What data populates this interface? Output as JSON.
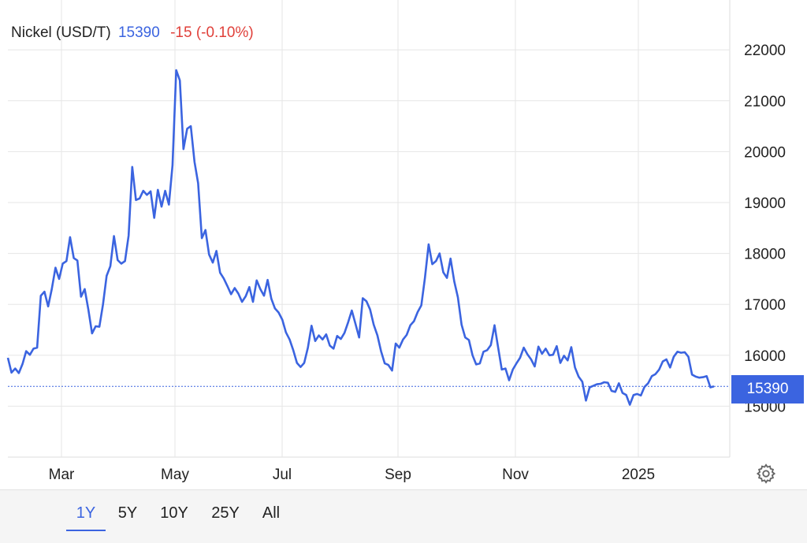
{
  "legend": {
    "name": "Nickel (USD/T)",
    "price": "15390",
    "change": "-15 (-0.10%)"
  },
  "price_tag": "15390",
  "range_buttons": [
    "1Y",
    "5Y",
    "10Y",
    "25Y",
    "All"
  ],
  "active_range": "1Y",
  "colors": {
    "line": "#3b64e0",
    "negative": "#e0403a",
    "grid": "#e6e6e6"
  },
  "icons": {
    "settings": "gear-icon"
  },
  "chart_data": {
    "type": "line",
    "title": "Nickel (USD/T)",
    "ylim": [
      14000,
      22000
    ],
    "yticks": [
      15000,
      16000,
      17000,
      18000,
      19000,
      20000,
      21000,
      22000
    ],
    "xticks": [
      "Mar",
      "May",
      "Jul",
      "Sep",
      "Nov",
      "2025"
    ],
    "last_value": 15390,
    "series": [
      {
        "values": [
          15950,
          15660,
          15740,
          15650,
          15830,
          16080,
          16010,
          16130,
          16150,
          17170,
          17250,
          16960,
          17300,
          17720,
          17500,
          17800,
          17850,
          18320,
          17910,
          17860,
          17150,
          17300,
          16900,
          16430,
          16570,
          16560,
          17000,
          17560,
          17750,
          18340,
          17870,
          17800,
          17850,
          18350,
          19700,
          19050,
          19080,
          19230,
          19150,
          19220,
          18700,
          19250,
          18920,
          19230,
          18960,
          19730,
          21600,
          21400,
          20050,
          20450,
          20500,
          19800,
          19380,
          18300,
          18460,
          17980,
          17820,
          18050,
          17620,
          17510,
          17360,
          17200,
          17320,
          17210,
          17050,
          17160,
          17340,
          17050,
          17470,
          17300,
          17170,
          17480,
          17110,
          16920,
          16840,
          16700,
          16450,
          16310,
          16100,
          15850,
          15770,
          15850,
          16150,
          16580,
          16280,
          16390,
          16310,
          16410,
          16190,
          16130,
          16380,
          16320,
          16440,
          16650,
          16880,
          16620,
          16350,
          17120,
          17060,
          16900,
          16600,
          16390,
          16080,
          15840,
          15810,
          15700,
          16230,
          16150,
          16310,
          16400,
          16590,
          16670,
          16850,
          16980,
          17520,
          18180,
          17790,
          17850,
          18000,
          17630,
          17520,
          17900,
          17450,
          17140,
          16600,
          16350,
          16300,
          16000,
          15820,
          15840,
          16070,
          16100,
          16200,
          16590,
          16150,
          15720,
          15740,
          15510,
          15720,
          15840,
          15950,
          16150,
          16020,
          15920,
          15780,
          16170,
          16030,
          16130,
          16000,
          16010,
          16180,
          15850,
          15990,
          15900,
          16160,
          15760,
          15580,
          15480,
          15110,
          15370,
          15400,
          15430,
          15440,
          15470,
          15460,
          15300,
          15280,
          15450,
          15260,
          15220,
          15030,
          15220,
          15240,
          15210,
          15380,
          15450,
          15590,
          15630,
          15720,
          15880,
          15920,
          15760,
          15970,
          16070,
          16050,
          16060,
          15970,
          15620,
          15580,
          15560,
          15570,
          15590,
          15370,
          15390
        ]
      }
    ]
  }
}
